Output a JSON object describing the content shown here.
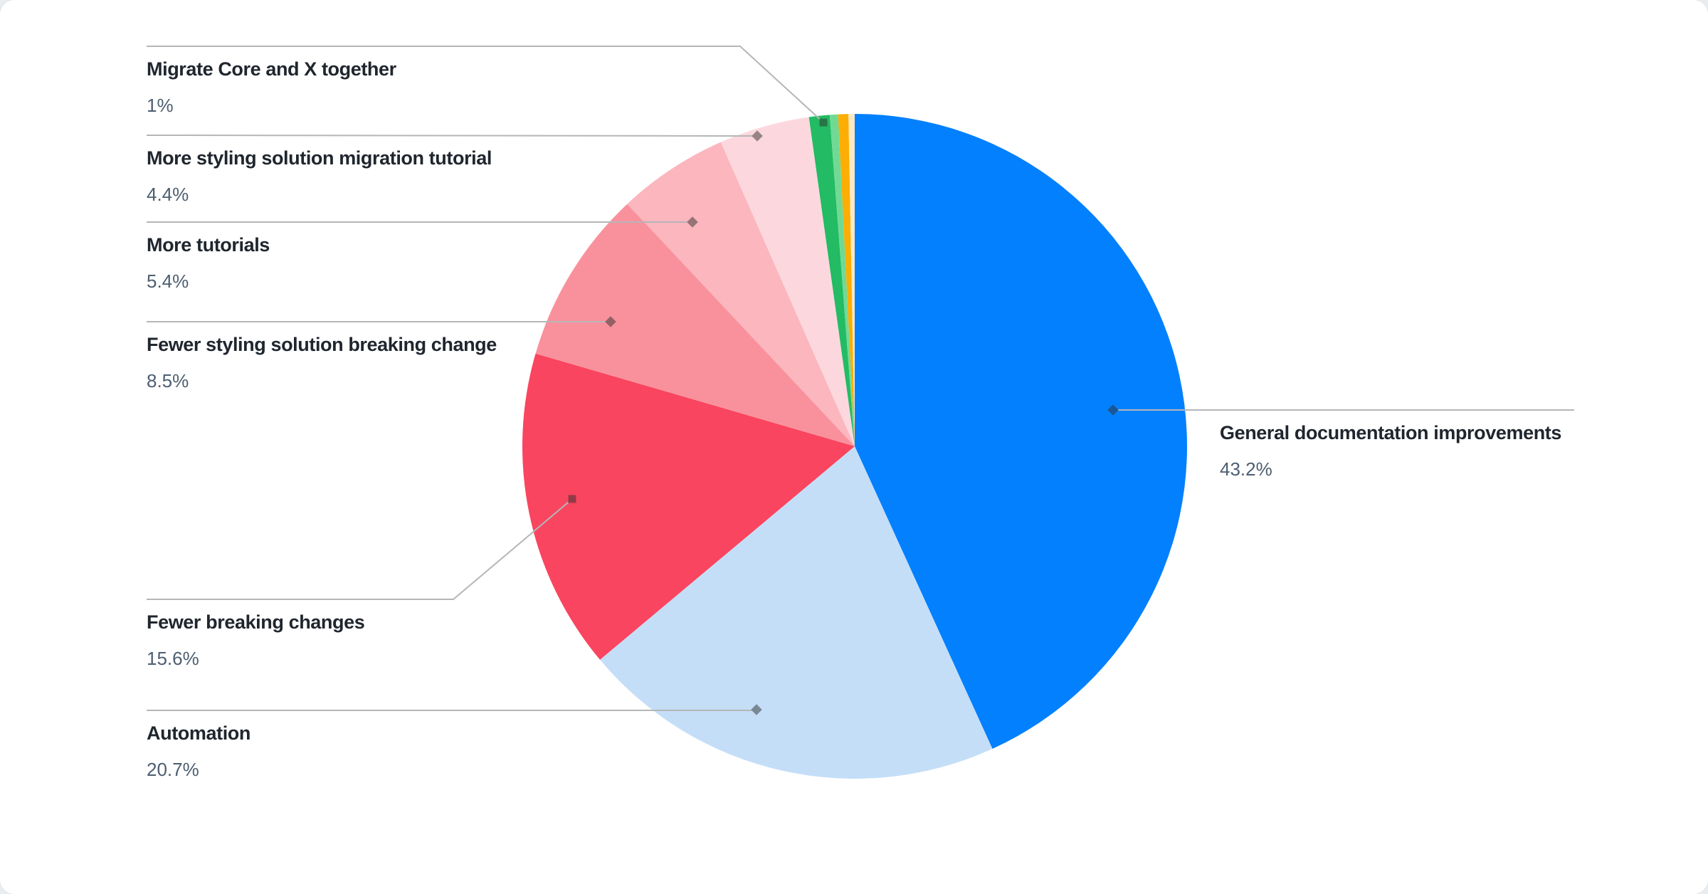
{
  "chart_data": {
    "type": "pie",
    "title": "",
    "unit": "%",
    "direction": "clockwise",
    "start_angle_deg": 0,
    "legend_position": "callout-labels",
    "slices": [
      {
        "label": "General documentation improvements",
        "display_value": "43.2%",
        "value": 43.2,
        "color": "#0380fd",
        "label_side": "right"
      },
      {
        "label": "Automation",
        "display_value": "20.7%",
        "value": 20.7,
        "color": "#c5def8",
        "label_side": "left"
      },
      {
        "label": "Fewer breaking changes",
        "display_value": "15.6%",
        "value": 15.6,
        "color": "#f9455f",
        "label_side": "left"
      },
      {
        "label": "Fewer styling solution breaking change",
        "display_value": "8.5%",
        "value": 8.5,
        "color": "#f9919c",
        "label_side": "left"
      },
      {
        "label": "More tutorials",
        "display_value": "5.4%",
        "value": 5.4,
        "color": "#fbb6be",
        "label_side": "left"
      },
      {
        "label": "More styling solution migration tutorial",
        "display_value": "4.4%",
        "value": 4.4,
        "color": "#fcd8de",
        "label_side": "left"
      },
      {
        "label": "Migrate Core and X together",
        "display_value": "1%",
        "value": 1,
        "color": "#23bb63",
        "label_side": "left"
      },
      {
        "label": "",
        "display_value": "",
        "value": 0.4,
        "color": "#70da95",
        "label_side": "none"
      },
      {
        "label": "",
        "display_value": "",
        "value": 0.5,
        "color": "#fcae04",
        "label_side": "none"
      },
      {
        "label": "",
        "display_value": "",
        "value": 0.3,
        "color": "#fbe9c4",
        "label_side": "none"
      }
    ],
    "colors": {
      "card_background": "#ffffff",
      "page_background": "#e9edf0",
      "leader_line": "#b4b6b8",
      "label_title_text": "#20262e",
      "label_value_text": "#4d5e70"
    }
  }
}
